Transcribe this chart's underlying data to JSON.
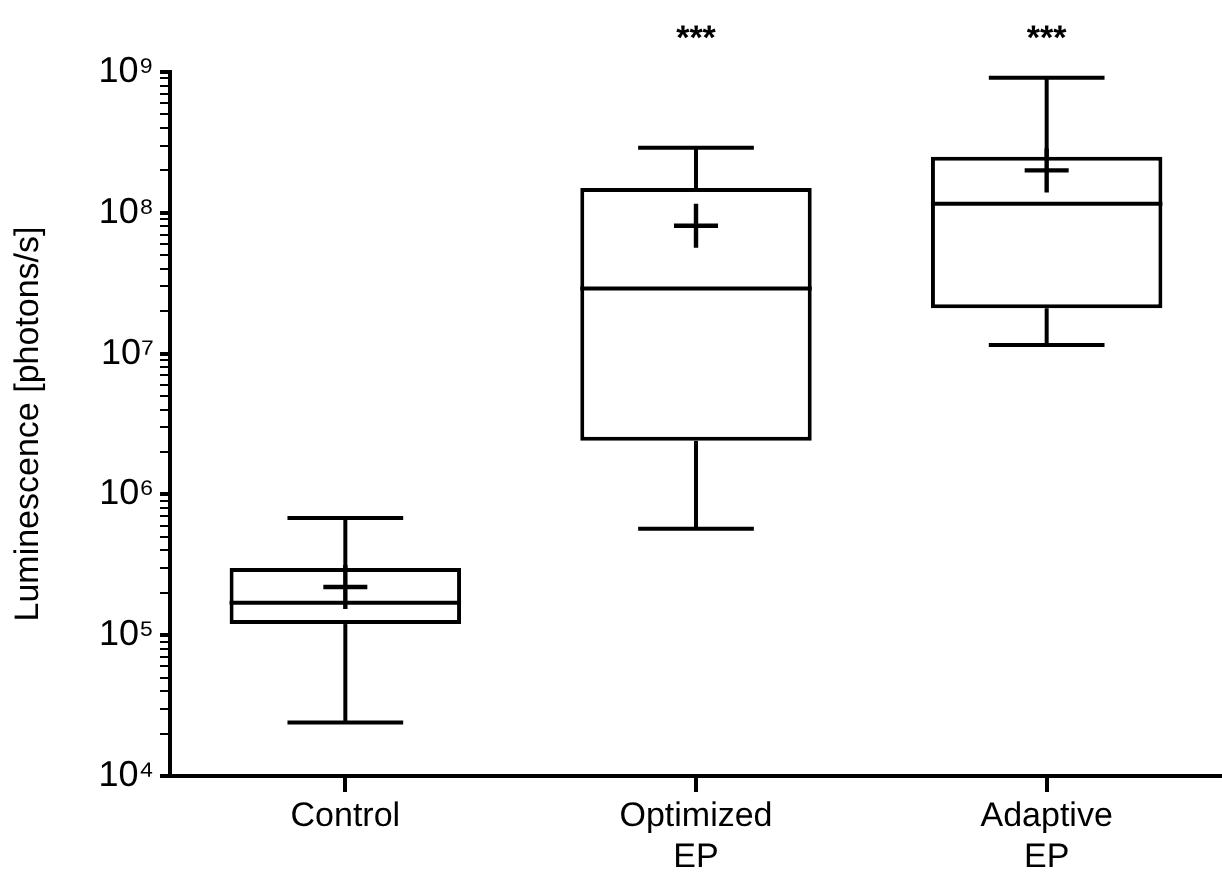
{
  "chart_data": {
    "type": "box",
    "ylabel": "Luminescence [photons/s]",
    "categories": [
      "Control",
      "Optimized\nEP",
      "Adaptive\nEP"
    ],
    "color": "#000000",
    "log": "y",
    "ylim": [
      10000,
      1000000000
    ],
    "yticks": [
      {
        "value": 10000,
        "label": "10⁴"
      },
      {
        "value": 20000,
        "label": null
      },
      {
        "value": 30000,
        "label": null
      },
      {
        "value": 40000,
        "label": null
      },
      {
        "value": 50000,
        "label": null
      },
      {
        "value": 60000,
        "label": null
      },
      {
        "value": 70000,
        "label": null
      },
      {
        "value": 80000,
        "label": null
      },
      {
        "value": 90000,
        "label": null
      },
      {
        "value": 100000,
        "label": "10⁵"
      },
      {
        "value": 200000,
        "label": null
      },
      {
        "value": 300000,
        "label": null
      },
      {
        "value": 400000,
        "label": null
      },
      {
        "value": 500000,
        "label": null
      },
      {
        "value": 600000,
        "label": null
      },
      {
        "value": 700000,
        "label": null
      },
      {
        "value": 800000,
        "label": null
      },
      {
        "value": 900000,
        "label": null
      },
      {
        "value": 1000000,
        "label": "10⁶"
      },
      {
        "value": 2000000,
        "label": null
      },
      {
        "value": 3000000,
        "label": null
      },
      {
        "value": 4000000,
        "label": null
      },
      {
        "value": 5000000,
        "label": null
      },
      {
        "value": 6000000,
        "label": null
      },
      {
        "value": 7000000,
        "label": null
      },
      {
        "value": 8000000,
        "label": null
      },
      {
        "value": 9000000,
        "label": null
      },
      {
        "value": 10000000,
        "label": "10⁷"
      },
      {
        "value": 20000000,
        "label": null
      },
      {
        "value": 30000000,
        "label": null
      },
      {
        "value": 40000000,
        "label": null
      },
      {
        "value": 50000000,
        "label": null
      },
      {
        "value": 60000000,
        "label": null
      },
      {
        "value": 70000000,
        "label": null
      },
      {
        "value": 80000000,
        "label": null
      },
      {
        "value": 90000000,
        "label": null
      },
      {
        "value": 100000000,
        "label": "10⁸"
      },
      {
        "value": 200000000,
        "label": null
      },
      {
        "value": 300000000,
        "label": null
      },
      {
        "value": 400000000,
        "label": null
      },
      {
        "value": 500000000,
        "label": null
      },
      {
        "value": 600000000,
        "label": null
      },
      {
        "value": 700000000,
        "label": null
      },
      {
        "value": 800000000,
        "label": null
      },
      {
        "value": 900000000,
        "label": null
      },
      {
        "value": 1000000000,
        "label": "10⁹"
      }
    ],
    "boxes": [
      {
        "low": 24000,
        "q1": 120000,
        "median": 170000,
        "q3": 300000,
        "high": 680000,
        "mean": 220000
      },
      {
        "low": 570000,
        "q1": 2400000,
        "median": 29000000,
        "q3": 150000000,
        "high": 290000000,
        "mean": 81000000
      },
      {
        "low": 11500000,
        "q1": 21000000,
        "median": 116000000,
        "q3": 250000000,
        "high": 910000000,
        "mean": 200000000
      }
    ],
    "annotations": [
      "***",
      "***"
    ]
  }
}
